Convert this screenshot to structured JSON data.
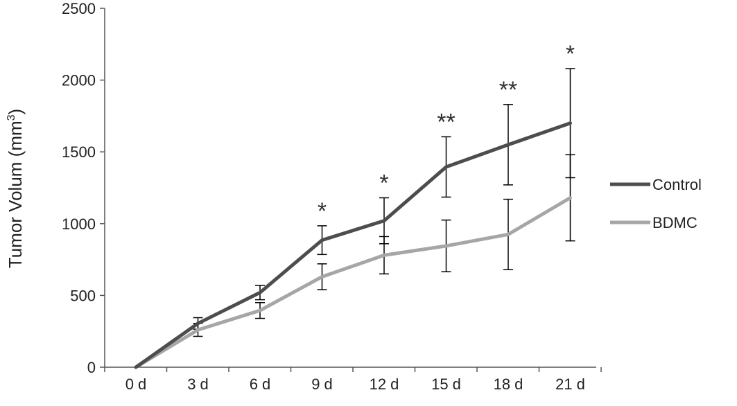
{
  "chart_data": {
    "type": "line",
    "title": "",
    "xlabel": "",
    "ylabel": "Tumor  Volum (mm",
    "ylabel_superscript": "3",
    "ylabel_close": ")",
    "categories": [
      "0 d",
      "3 d",
      "6 d",
      "9 d",
      "12 d",
      "15 d",
      "18 d",
      "21 d"
    ],
    "ylim": [
      0,
      2500
    ],
    "yticks": [
      "0",
      "500",
      "1000",
      "1500",
      "2000",
      "2500"
    ],
    "ytick_values": [
      0,
      500,
      1000,
      1500,
      2000,
      2500
    ],
    "grid": false,
    "legend_position": "right",
    "series": [
      {
        "name": "Control",
        "color": "#4d4d4d",
        "values": [
          0,
          305,
          520,
          885,
          1020,
          1395,
          1550,
          1700
        ],
        "error": [
          0,
          40,
          50,
          100,
          160,
          210,
          280,
          380
        ]
      },
      {
        "name": "BDMC",
        "color": "#a6a6a6",
        "values": [
          0,
          260,
          395,
          630,
          780,
          845,
          925,
          1180
        ],
        "error": [
          0,
          45,
          55,
          90,
          130,
          180,
          245,
          300
        ]
      }
    ],
    "annotations": [
      {
        "category": "9 d",
        "text": "*"
      },
      {
        "category": "12 d",
        "text": "*"
      },
      {
        "category": "15 d",
        "text": "**"
      },
      {
        "category": "18 d",
        "text": "**"
      },
      {
        "category": "21 d",
        "text": "*"
      }
    ]
  }
}
